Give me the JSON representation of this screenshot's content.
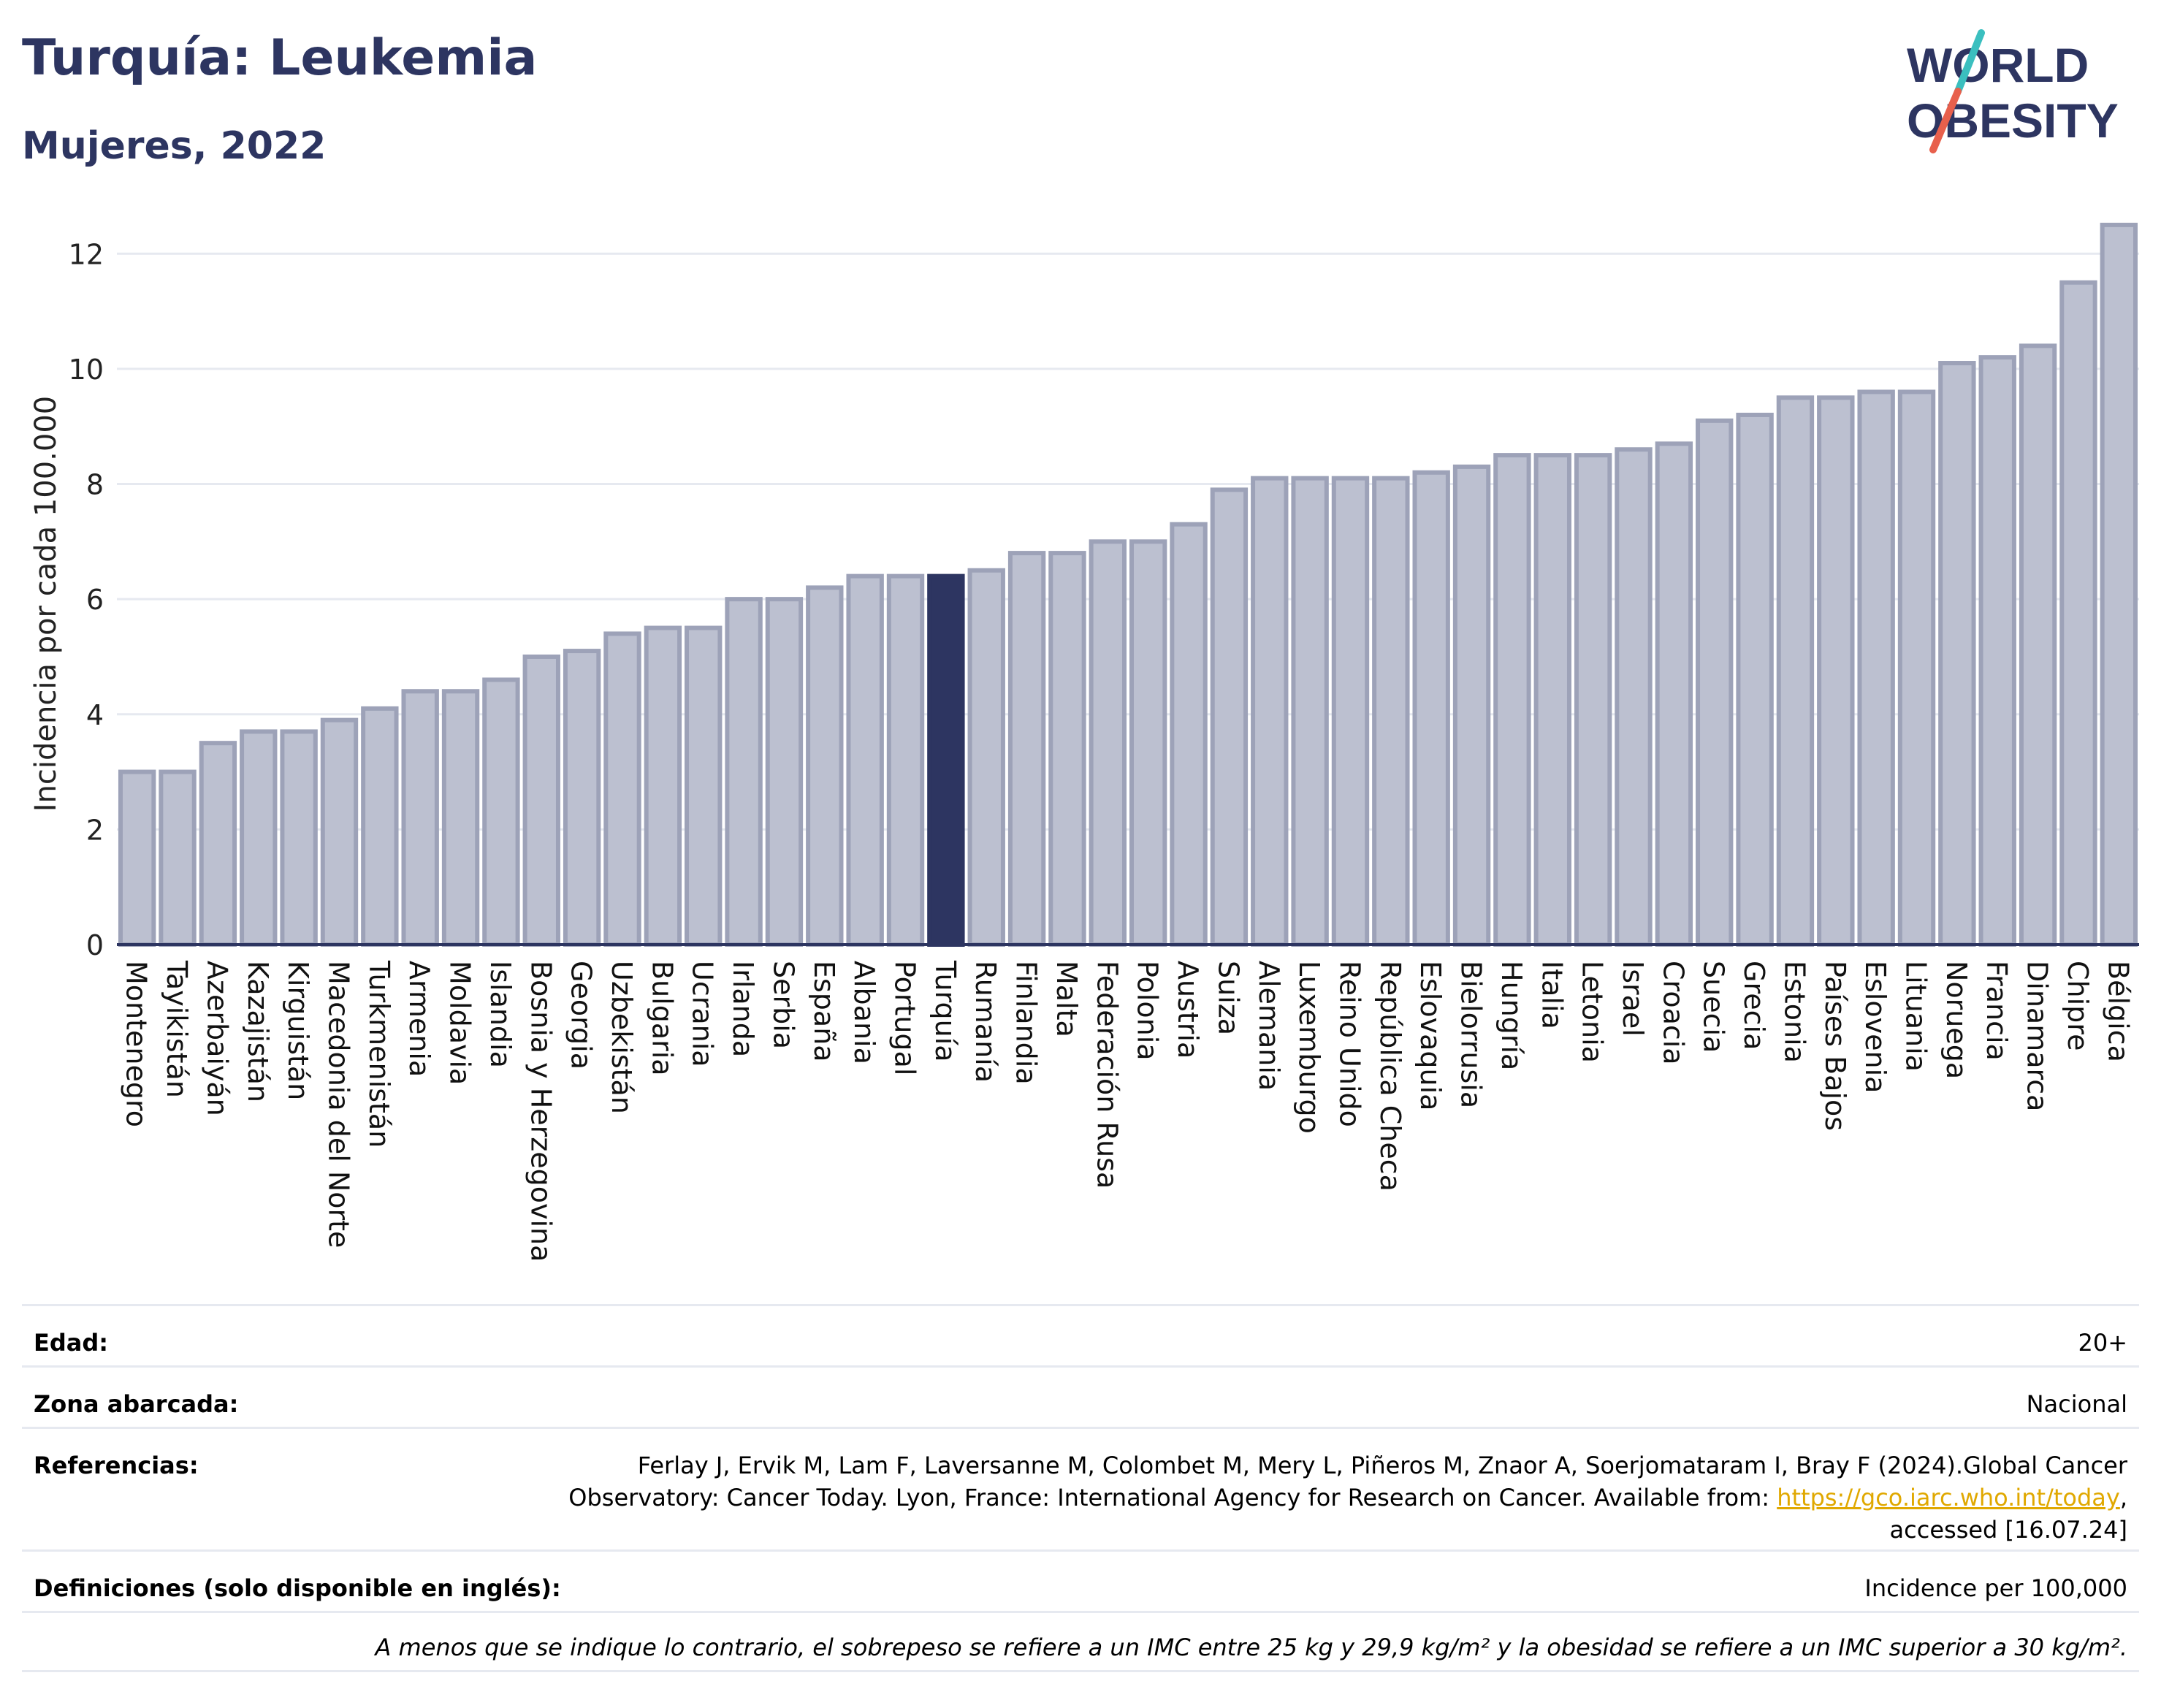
{
  "header": {
    "title": "Turquía: Leukemia",
    "subtitle": "Mujeres, 2022",
    "logo_line1": "WORLD",
    "logo_line2": "OBESITY"
  },
  "colors": {
    "bar": "#bcc0d0",
    "bar_border": "#9da2b8",
    "highlight": "#2d3561",
    "title": "#2d3561",
    "grid": "#e6e9f0",
    "logo_slash_top": "#3bbfbf",
    "logo_slash_bottom": "#e8604c",
    "link": "#e0a800"
  },
  "chart_data": {
    "type": "bar",
    "title": "Turquía: Leukemia",
    "subtitle": "Mujeres, 2022",
    "xlabel": "",
    "ylabel": "Incidencia por cada 100.000",
    "ylim": [
      0,
      12.6
    ],
    "yticks": [
      0,
      2,
      4,
      6,
      8,
      10,
      12
    ],
    "grid": true,
    "highlight": "Turquía",
    "categories": [
      "Montenegro",
      "Tayikistán",
      "Azerbaiyán",
      "Kazajistán",
      "Kirguistán",
      "Macedonia del Norte",
      "Turkmenistán",
      "Armenia",
      "Moldavia",
      "Islandia",
      "Bosnia y Herzegovina",
      "Georgia",
      "Uzbekistán",
      "Bulgaria",
      "Ucrania",
      "Irlanda",
      "Serbia",
      "España",
      "Albania",
      "Portugal",
      "Turquía",
      "Rumanía",
      "Finlandia",
      "Malta",
      "Federación Rusa",
      "Polonia",
      "Austria",
      "Suiza",
      "Alemania",
      "Luxemburgo",
      "Reino Unido",
      "República Checa",
      "Eslovaquia",
      "Bielorrusia",
      "Hungría",
      "Italia",
      "Letonia",
      "Israel",
      "Croacia",
      "Suecia",
      "Grecia",
      "Estonia",
      "Países Bajos",
      "Eslovenia",
      "Lituania",
      "Noruega",
      "Francia",
      "Dinamarca",
      "Chipre",
      "Bélgica"
    ],
    "values": [
      3.0,
      3.0,
      3.5,
      3.7,
      3.7,
      3.9,
      4.1,
      4.4,
      4.4,
      4.6,
      5.0,
      5.1,
      5.4,
      5.5,
      5.5,
      6.0,
      6.0,
      6.2,
      6.4,
      6.4,
      6.4,
      6.5,
      6.8,
      6.8,
      7.0,
      7.0,
      7.3,
      7.9,
      8.1,
      8.1,
      8.1,
      8.1,
      8.2,
      8.3,
      8.5,
      8.5,
      8.5,
      8.6,
      8.7,
      9.1,
      9.2,
      9.5,
      9.5,
      9.6,
      9.6,
      10.1,
      10.2,
      10.4,
      11.5,
      12.5
    ]
  },
  "info": {
    "edad_label": "Edad:",
    "edad_value": "20+",
    "zona_label": "Zona abarcada:",
    "zona_value": "Nacional",
    "ref_label": "Referencias:",
    "ref_line1": "Ferlay J, Ervik M, Lam F, Laversanne M, Colombet M, Mery L, Piñeros M, Znaor A, Soerjomataram I, Bray F (2024).Global Cancer",
    "ref_line2": "Observatory: Cancer Today. Lyon, France: International Agency for Research on Cancer. Available from: ",
    "ref_link": "https://gco.iarc.who.int/today",
    "ref_line2_end": ",",
    "ref_line3": "accessed [16.07.24]",
    "def_label": "Definiciones (solo disponible en inglés):",
    "def_value": "Incidence per 100,000",
    "note": "A menos que se indique lo contrario, el sobrepeso se refiere a un IMC entre 25 kg y 29,9 kg/m² y la obesidad se refiere a un IMC superior a 30 kg/m²."
  }
}
